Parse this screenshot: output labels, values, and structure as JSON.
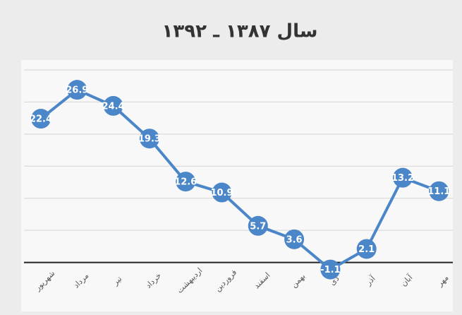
{
  "chart_data": {
    "type": "line",
    "title": "سال ۱۳۸۷ ـ ۱۳۹۲",
    "categories": [
      "شهریور",
      "مرداد",
      "تیر",
      "خرداد",
      "اردیبهشت",
      "فروردین",
      "اسفند",
      "بهمن",
      "دی",
      "آذر",
      "آبان",
      "مهر"
    ],
    "series": [
      {
        "color": "#4a86c8",
        "values": [
          22.4,
          26.9,
          24.4,
          19.3,
          12.6,
          10.9,
          5.7,
          3.6,
          -1.1,
          2.1,
          13.2,
          11.1
        ]
      }
    ],
    "ylim": [
      -5,
      30
    ],
    "yticks": [
      0,
      5,
      10,
      15,
      20,
      25,
      30
    ],
    "grid": true
  }
}
